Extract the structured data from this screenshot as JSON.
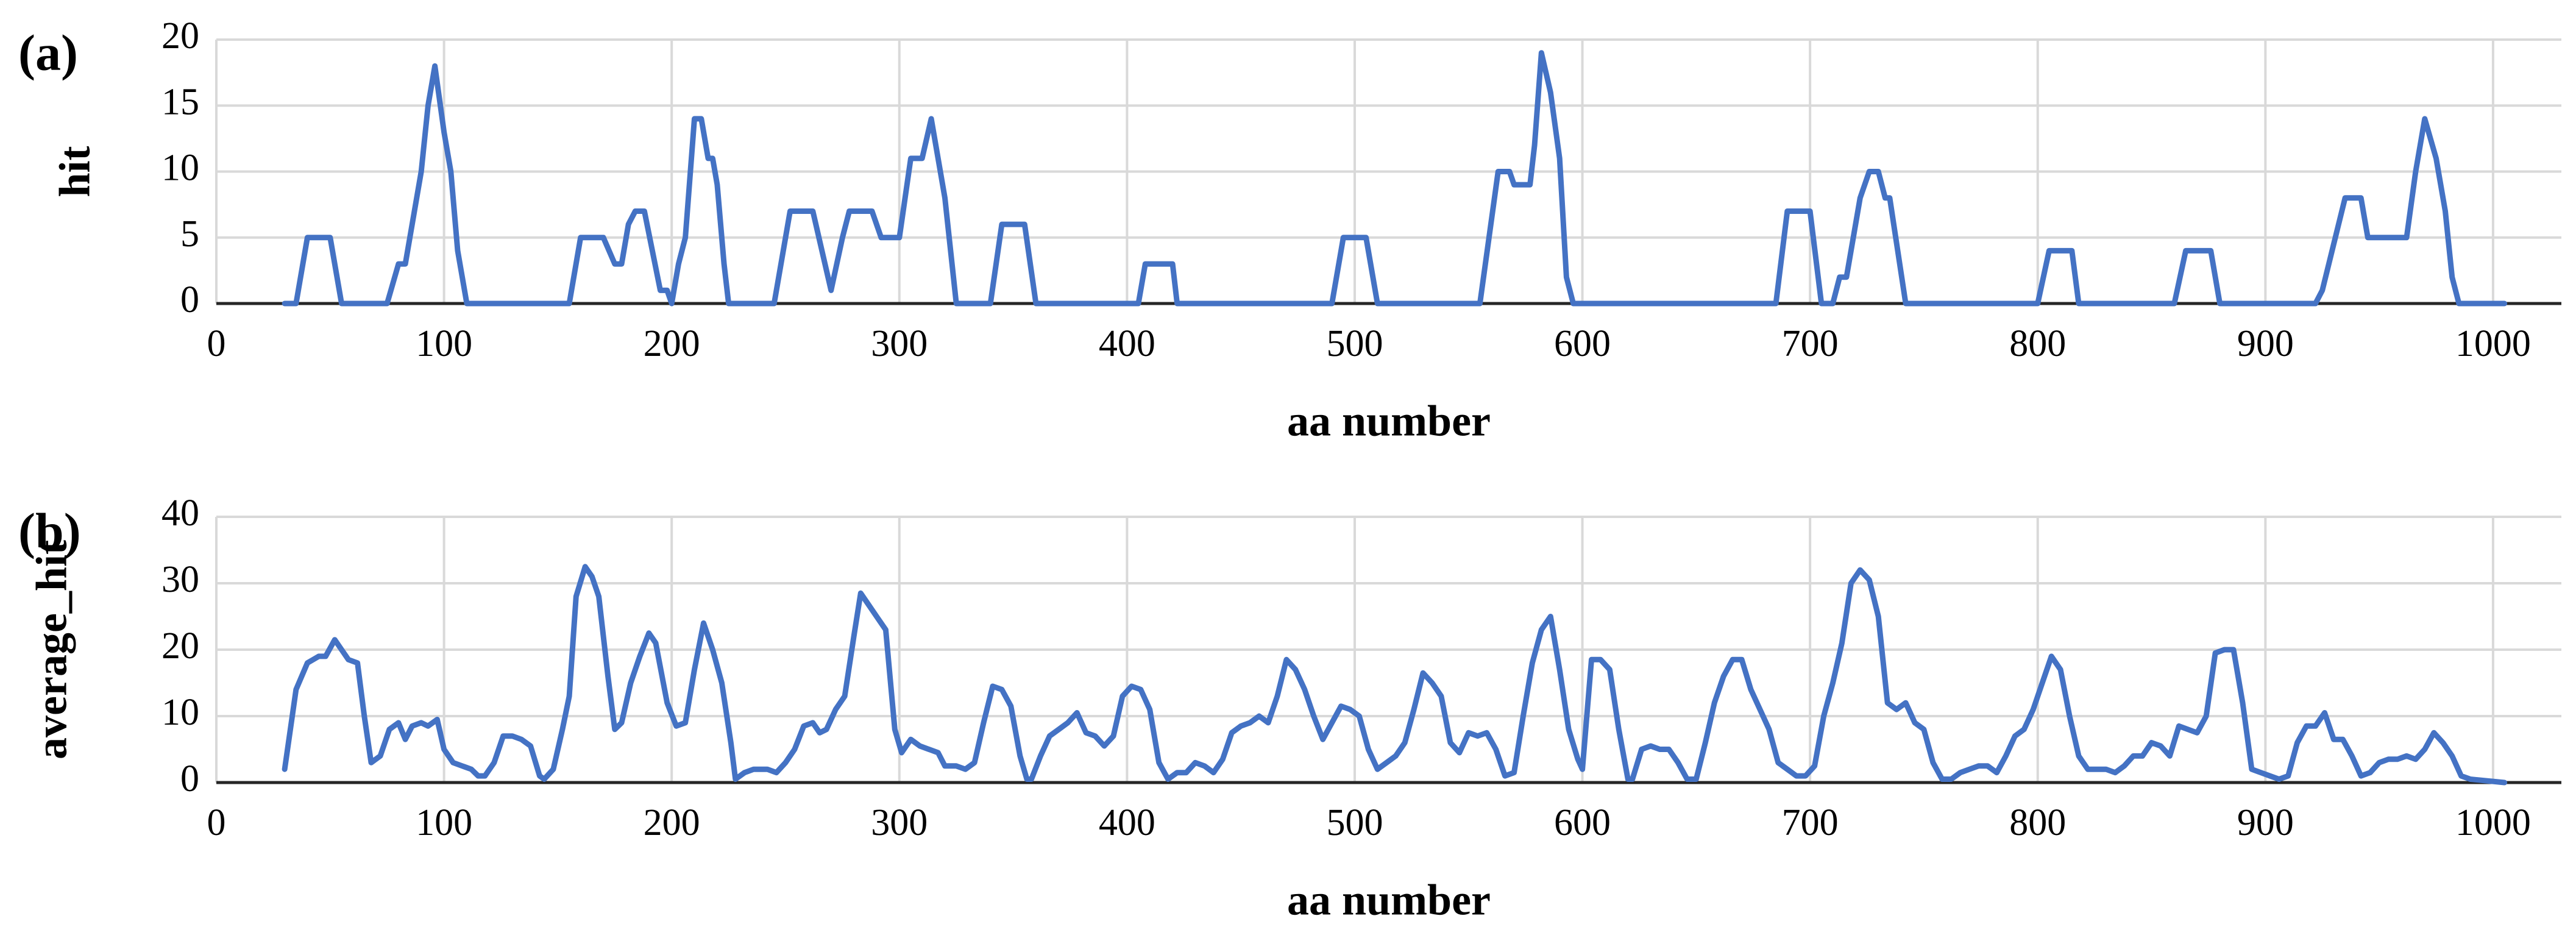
{
  "chart_data": [
    {
      "type": "line",
      "panel_label": "(a)",
      "xlabel": "aa number",
      "ylabel": "hit",
      "color": "#4472c4",
      "grid": true,
      "xlim": [
        0,
        1030
      ],
      "ylim": [
        0,
        20
      ],
      "xticks": [
        0,
        100,
        200,
        300,
        400,
        500,
        600,
        700,
        800,
        900,
        1000
      ],
      "yticks": [
        0,
        5,
        10,
        15,
        20
      ],
      "x": [
        30,
        35,
        40,
        50,
        55,
        75,
        80,
        83,
        90,
        93,
        96,
        100,
        103,
        106,
        110,
        155,
        160,
        170,
        175,
        178,
        181,
        184,
        188,
        195,
        198,
        200,
        203,
        206,
        210,
        213,
        216,
        218,
        220,
        223,
        225,
        245,
        252,
        262,
        270,
        275,
        278,
        288,
        292,
        300,
        305,
        310,
        314,
        320,
        325,
        340,
        345,
        355,
        360,
        405,
        408,
        420,
        422,
        490,
        495,
        505,
        510,
        555,
        563,
        568,
        570,
        577,
        579,
        582,
        586,
        590,
        593,
        596,
        685,
        690,
        700,
        705,
        710,
        713,
        716,
        722,
        726,
        730,
        733,
        735,
        742,
        800,
        805,
        815,
        818,
        860,
        865,
        876,
        880,
        922,
        925,
        935,
        942,
        945,
        962,
        966,
        970,
        975,
        979,
        982,
        985,
        1005
      ],
      "values": [
        0,
        0,
        5,
        5,
        0,
        0,
        3,
        3,
        10,
        15,
        18,
        13,
        10,
        4,
        0,
        0,
        5,
        5,
        3,
        3,
        6,
        7,
        7,
        1,
        1,
        0,
        3,
        5,
        14,
        14,
        11,
        11,
        9,
        3,
        0,
        0,
        7,
        7,
        1,
        5,
        7,
        7,
        5,
        5,
        11,
        11,
        14,
        8,
        0,
        0,
        6,
        6,
        0,
        0,
        3,
        3,
        0,
        0,
        5,
        5,
        0,
        0,
        10,
        10,
        9,
        9,
        12,
        19,
        16,
        11,
        2,
        0,
        0,
        7,
        7,
        0,
        0,
        2,
        2,
        8,
        10,
        10,
        8,
        8,
        0,
        0,
        4,
        4,
        0,
        0,
        4,
        4,
        0,
        0,
        1,
        8,
        8,
        5,
        5,
        10,
        14,
        11,
        7,
        2,
        0,
        0
      ]
    },
    {
      "type": "line",
      "panel_label": "(b)",
      "xlabel": "aa number",
      "ylabel": "average_hit",
      "color": "#4472c4",
      "grid": true,
      "xlim": [
        0,
        1030
      ],
      "ylim": [
        0,
        40
      ],
      "xticks": [
        0,
        100,
        200,
        300,
        400,
        500,
        600,
        700,
        800,
        900,
        1000
      ],
      "yticks": [
        0,
        10,
        20,
        30,
        40
      ],
      "x": [
        30,
        35,
        40,
        45,
        48,
        52,
        55,
        58,
        62,
        65,
        68,
        72,
        76,
        80,
        83,
        86,
        90,
        93,
        97,
        100,
        104,
        108,
        112,
        115,
        118,
        122,
        126,
        130,
        134,
        138,
        142,
        144,
        148,
        152,
        155,
        158,
        162,
        165,
        168,
        172,
        175,
        178,
        182,
        186,
        190,
        193,
        198,
        202,
        206,
        210,
        214,
        218,
        222,
        226,
        228,
        232,
        236,
        242,
        246,
        250,
        254,
        258,
        262,
        265,
        268,
        272,
        276,
        280,
        283,
        286,
        290,
        294,
        298,
        301,
        305,
        309,
        313,
        317,
        320,
        325,
        329,
        333,
        337,
        341,
        345,
        349,
        353,
        356,
        358,
        362,
        366,
        370,
        374,
        378,
        382,
        386,
        390,
        394,
        398,
        402,
        406,
        410,
        414,
        418,
        422,
        426,
        430,
        434,
        438,
        442,
        446,
        450,
        454,
        458,
        462,
        466,
        470,
        474,
        478,
        482,
        486,
        490,
        494,
        498,
        502,
        506,
        510,
        514,
        518,
        522,
        526,
        530,
        534,
        538,
        542,
        546,
        550,
        554,
        558,
        562,
        566,
        570,
        574,
        578,
        582,
        586,
        590,
        594,
        598,
        600,
        604,
        608,
        612,
        616,
        620,
        622,
        626,
        630,
        634,
        638,
        642,
        646,
        650,
        654,
        658,
        662,
        666,
        670,
        674,
        678,
        682,
        686,
        690,
        694,
        698,
        702,
        706,
        710,
        714,
        718,
        722,
        726,
        730,
        734,
        738,
        742,
        746,
        750,
        754,
        758,
        762,
        766,
        770,
        774,
        778,
        782,
        786,
        790,
        794,
        798,
        802,
        806,
        810,
        814,
        818,
        822,
        826,
        830,
        834,
        838,
        842,
        846,
        850,
        854,
        858,
        862,
        866,
        870,
        874,
        878,
        882,
        886,
        890,
        894,
        898,
        902,
        906,
        910,
        914,
        918,
        922,
        926,
        930,
        934,
        938,
        942,
        946,
        950,
        954,
        958,
        962,
        966,
        970,
        974,
        978,
        982,
        986,
        990,
        1005
      ],
      "values": [
        2,
        14,
        18,
        19,
        19,
        21.5,
        20,
        18.5,
        18,
        10,
        3,
        4,
        8,
        9,
        6.5,
        8.5,
        9,
        8.5,
        9.5,
        5,
        3,
        2.5,
        2,
        1,
        1,
        3,
        7,
        7,
        6.5,
        5.5,
        1,
        0.5,
        2,
        8,
        13,
        28,
        32.5,
        31,
        28,
        16,
        8,
        9,
        15,
        19,
        22.5,
        21,
        12,
        8.5,
        9,
        17,
        24,
        20,
        15,
        6,
        0.5,
        1.5,
        2,
        2,
        1.5,
        3,
        5,
        8.5,
        9,
        7.5,
        8,
        11,
        13,
        22,
        28.5,
        27,
        25,
        23,
        8,
        4.5,
        6.5,
        5.5,
        5,
        4.5,
        2.5,
        2.5,
        2,
        3,
        9,
        14.5,
        14,
        11.5,
        4,
        0.5,
        0.5,
        4,
        7,
        8,
        9,
        10.5,
        7.5,
        7,
        5.5,
        7,
        13,
        14.5,
        14,
        11,
        3,
        0.5,
        1.5,
        1.5,
        3,
        2.5,
        1.5,
        3.5,
        7.5,
        8.5,
        9,
        10,
        9,
        13,
        18.5,
        17,
        14,
        10,
        6.5,
        9,
        11.5,
        11,
        10,
        5,
        2,
        3,
        4,
        6,
        11,
        16.5,
        15,
        13,
        6,
        4.5,
        7.5,
        7,
        7.5,
        5,
        1,
        1.5,
        10,
        18,
        23,
        25,
        17,
        8,
        3.5,
        2,
        18.5,
        18.5,
        17,
        8,
        0.5,
        0.5,
        5,
        5.5,
        5,
        5,
        3,
        0.5,
        0.5,
        6,
        12,
        16,
        18.5,
        18.5,
        14,
        11,
        8,
        3,
        2,
        1,
        1,
        2.5,
        10,
        15,
        21,
        30,
        32,
        30.5,
        25,
        12,
        11,
        12,
        9,
        8,
        3,
        0.5,
        0.5,
        1.5,
        2,
        2.5,
        2.5,
        1.5,
        4,
        7,
        8,
        11,
        15,
        19,
        17,
        10,
        4,
        2,
        2,
        2,
        1.5,
        2.5,
        4,
        4,
        6,
        5.5,
        4,
        8.5,
        8,
        7.5,
        10,
        19.5,
        20,
        20,
        12,
        2,
        1.5,
        1,
        0.5,
        1,
        6,
        8.5,
        8.5,
        10.5,
        6.5,
        6.5,
        4,
        1,
        1.5,
        3,
        3.5,
        3.5,
        4,
        3.5,
        5,
        7.5,
        6,
        4,
        1,
        0.5,
        0
      ]
    }
  ]
}
